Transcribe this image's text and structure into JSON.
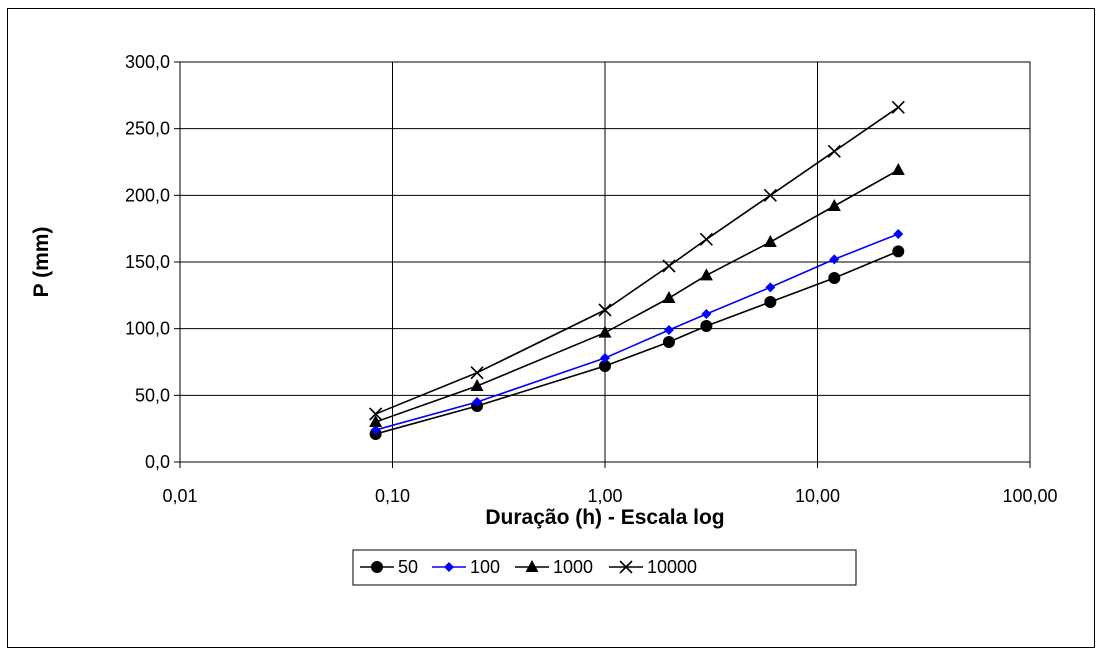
{
  "chart_data": {
    "type": "line",
    "title": "",
    "xlabel": "Duração (h) - Escala log",
    "ylabel": "P (mm)",
    "x_scale": "log",
    "xlim": [
      0.01,
      100
    ],
    "ylim": [
      0,
      300
    ],
    "x_tick_labels": [
      "0,01",
      "0,10",
      "1,00",
      "10,00",
      "100,00"
    ],
    "x_tick_values": [
      0.01,
      0.1,
      1,
      10,
      100
    ],
    "y_tick_labels": [
      "0,0",
      "50,0",
      "100,0",
      "150,0",
      "200,0",
      "250,0",
      "300,0"
    ],
    "y_tick_values": [
      0,
      50,
      100,
      150,
      200,
      250,
      300
    ],
    "grid": true,
    "legend_position": "bottom",
    "x": [
      0.0833,
      0.25,
      1,
      2,
      3,
      6,
      12,
      24
    ],
    "series": [
      {
        "name": "50",
        "marker": "circle",
        "color": "#000000",
        "values": [
          21,
          42,
          72,
          90,
          102,
          120,
          138,
          158
        ]
      },
      {
        "name": "100",
        "marker": "diamond",
        "color": "#0000ff",
        "values": [
          24,
          45,
          78,
          99,
          111,
          131,
          152,
          171
        ]
      },
      {
        "name": "1000",
        "marker": "triangle",
        "color": "#000000",
        "values": [
          30,
          57,
          97,
          123,
          140,
          165,
          192,
          219
        ]
      },
      {
        "name": "10000",
        "marker": "x",
        "color": "#000000",
        "values": [
          36,
          67,
          114,
          147,
          167,
          200,
          233,
          266
        ]
      }
    ]
  }
}
